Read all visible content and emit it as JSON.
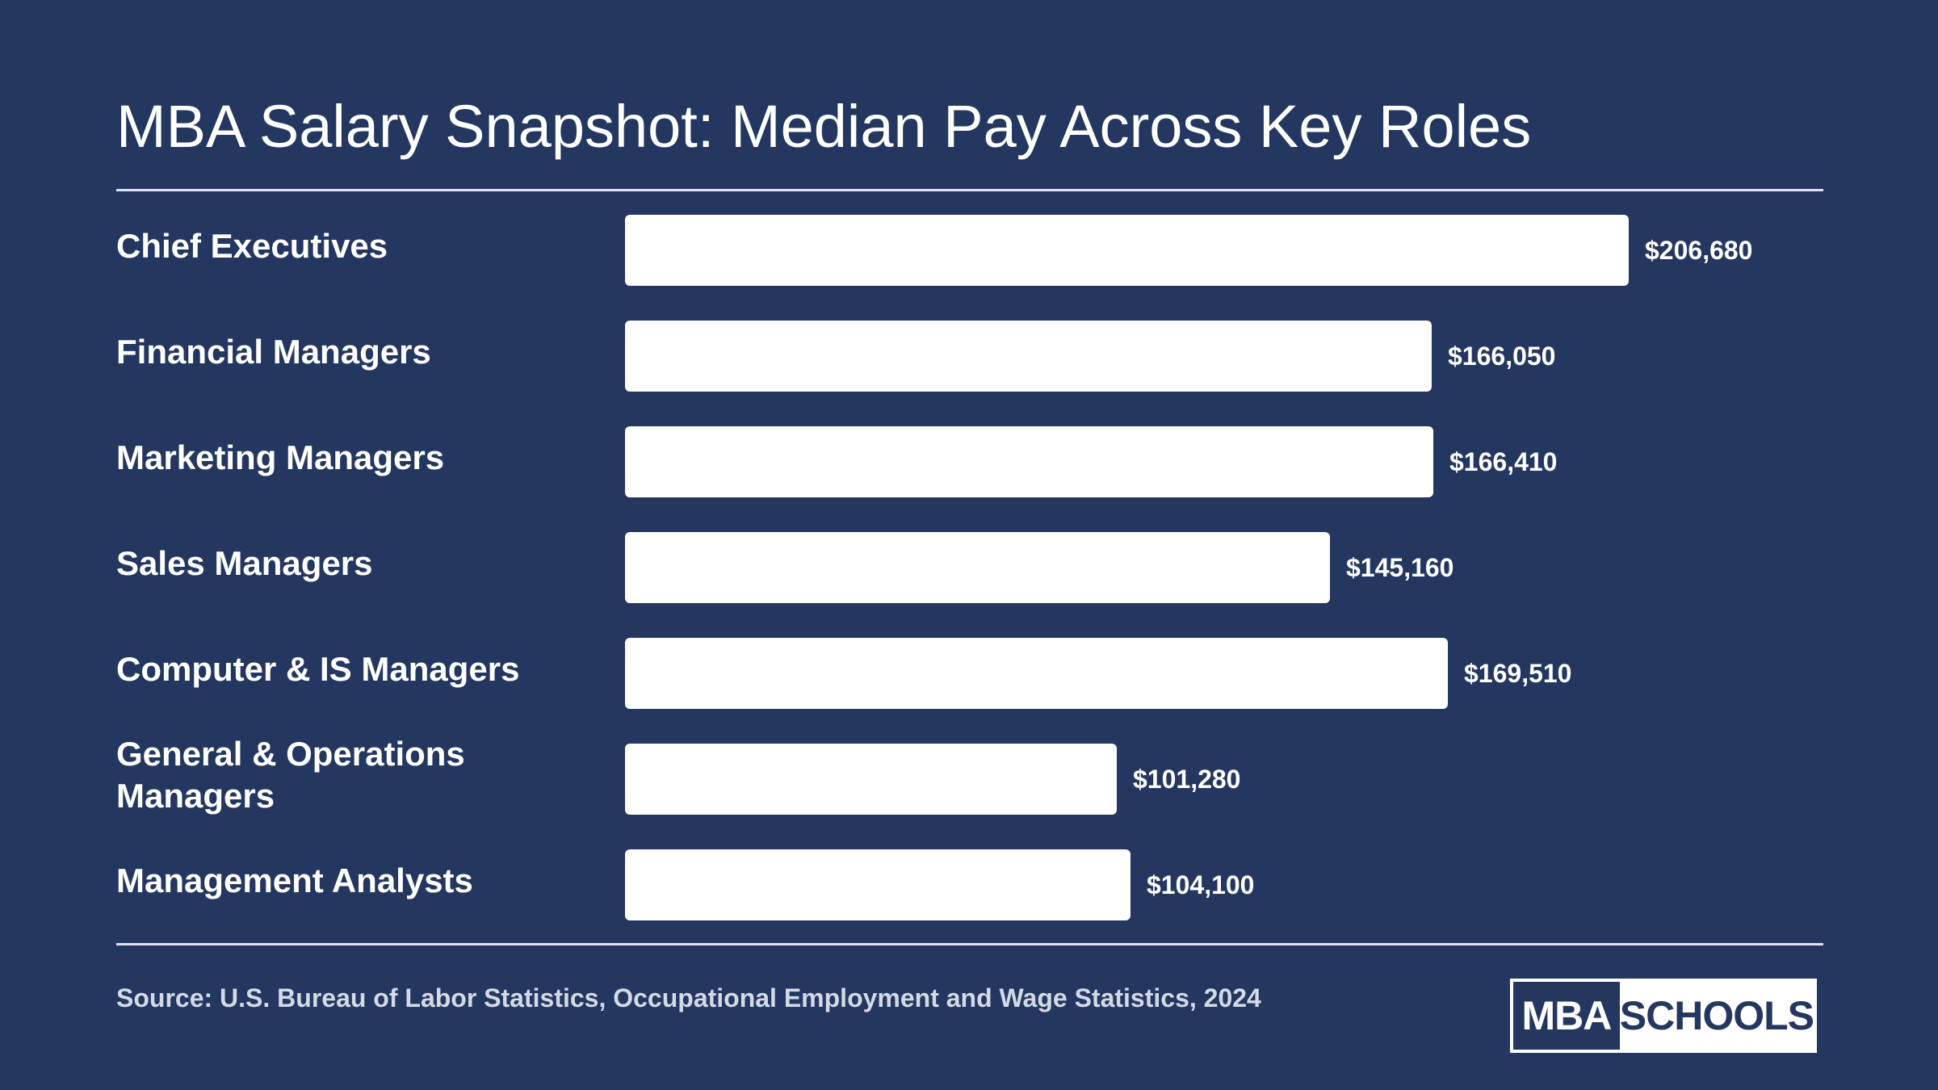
{
  "header": {
    "title": "MBA Salary Snapshot: Median Pay Across Key Roles"
  },
  "colors": {
    "background": "#243760",
    "bar": "#ffffff",
    "text": "#ffffff",
    "source_text": "#d3dae6"
  },
  "chart_data": {
    "type": "bar",
    "orientation": "horizontal",
    "title": "MBA Salary Snapshot: Median Pay Across Key Roles",
    "categories": [
      "Chief Executives",
      "Financial Managers",
      "Marketing Managers",
      "Sales Managers",
      "Computer & IS Managers",
      "General & Operations Managers",
      "Management Analysts"
    ],
    "values": [
      206680,
      166050,
      166410,
      145160,
      169510,
      101280,
      104100
    ],
    "value_labels": [
      "$206,680",
      "$166,050",
      "$166,410",
      "$145,160",
      "$169,510",
      "$101,280",
      "$104,100"
    ],
    "xlabel": "",
    "ylabel": "",
    "xlim": [
      0,
      206680
    ],
    "grid": false,
    "legend": "none"
  },
  "footer": {
    "source": "Source: U.S. Bureau of Labor Statistics, Occupational Employment and Wage Statistics, 2024",
    "logo_left": "MBA",
    "logo_right": "SCHOOLS"
  }
}
